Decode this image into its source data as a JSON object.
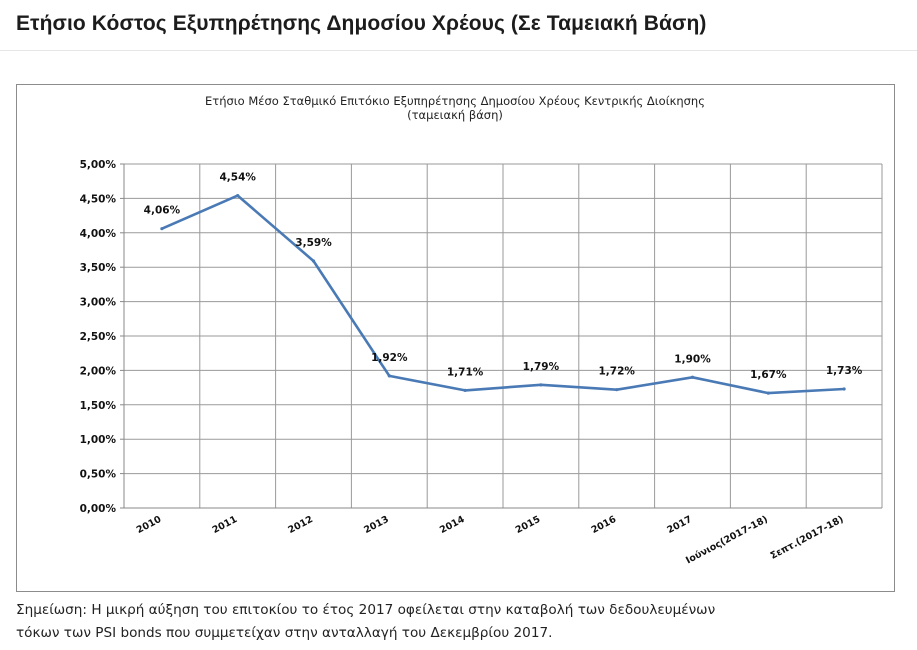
{
  "page": {
    "title": "Ετήσιο Κόστος Εξυπηρέτησης Δημοσίου Χρέους (Σε Ταμειακή Βάση)",
    "note_line1": "Σημείωση: Η μικρή αύξηση του επιτοκίου το έτος 2017 οφείλεται στην καταβολή των δεδουλευμένων",
    "note_line2": "τόκων των PSI bonds που συμμετείχαν στην ανταλλαγή του Δεκεμβρίου 2017."
  },
  "chart_data": {
    "type": "line",
    "title": "Ετήσιο Μέσο Σταθμικό Επιτόκιο  Εξυπηρέτησης Δημοσίου Χρέους Κεντρικής Διοίκησης",
    "subtitle": "(ταμειακή βάση)",
    "xlabel": "",
    "ylabel": "",
    "categories": [
      "2010",
      "2011",
      "2012",
      "2013",
      "2014",
      "2015",
      "2016",
      "2017",
      "Ιούνιος(2017-18)",
      "Σεπτ.(2017-18)"
    ],
    "series": [
      {
        "values": [
          4.06,
          4.54,
          3.59,
          1.92,
          1.71,
          1.79,
          1.72,
          1.9,
          1.67,
          1.73
        ],
        "labels": [
          "4,06%",
          "4,54%",
          "3,59%",
          "1,92%",
          "1,71%",
          "1,79%",
          "1,72%",
          "1,90%",
          "1,67%",
          "1,73%"
        ]
      }
    ],
    "ylim": [
      0,
      5
    ],
    "yticks": [
      "0,00%",
      "0,50%",
      "1,00%",
      "1,50%",
      "2,00%",
      "2,50%",
      "3,00%",
      "3,50%",
      "4,00%",
      "4,50%",
      "5,00%"
    ],
    "grid": true,
    "legend": "none",
    "line_color": "#4a7ab5"
  }
}
